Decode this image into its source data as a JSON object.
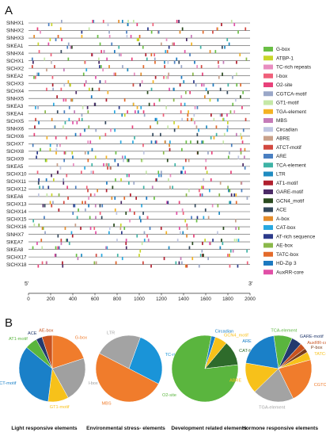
{
  "panel_a": {
    "letter": "A",
    "axis_start_label": "5'",
    "axis_end_label": "3'",
    "axis_ticks": [
      0,
      200,
      400,
      600,
      800,
      1000,
      1200,
      1400,
      1600,
      1800,
      2000
    ],
    "axis_range": [
      0,
      2000
    ],
    "genes": [
      "SlNHX1",
      "SlNHX2",
      "SlNHX3",
      "SlKEA1",
      "SlNHX4",
      "SlCHX1",
      "SlCHX2",
      "SlKEA2",
      "SlCHX3",
      "SlCHX4",
      "SlNHX5",
      "SlKEA3",
      "SlKEA4",
      "SlCHX5",
      "SlNHX6",
      "SlCHX6",
      "SlCHX7",
      "SlCHX8",
      "SlCHX9",
      "SlKEA5",
      "SlCHX10",
      "SlCHX11",
      "SlCHX12",
      "SlKEA6",
      "SlCHX13",
      "SlCHX14",
      "SlCHX15",
      "SlCHX16",
      "SlNHX7",
      "SlKEA7",
      "SlKEA8",
      "SlCHX17",
      "SlCHX18"
    ],
    "legend": [
      {
        "name": "G-box",
        "color": "#6abf45"
      },
      {
        "name": "ATBP-1",
        "color": "#c8d62b"
      },
      {
        "name": "TC-rich repeats",
        "color": "#e88dc0"
      },
      {
        "name": "I-box",
        "color": "#f0607a"
      },
      {
        "name": "O2-site",
        "color": "#e8417a"
      },
      {
        "name": "CGTCA-motif",
        "color": "#9aa7c8"
      },
      {
        "name": "GT1-motif",
        "color": "#c5e8a6"
      },
      {
        "name": "TGA-element",
        "color": "#f4b223"
      },
      {
        "name": "MBS",
        "color": "#c57bb8"
      },
      {
        "name": "Circadian",
        "color": "#bfc6e2"
      },
      {
        "name": "ABRE",
        "color": "#c9a08a"
      },
      {
        "name": "ATCT-motif",
        "color": "#d2483f"
      },
      {
        "name": "ARE",
        "color": "#4a7fc1"
      },
      {
        "name": "TCA-element",
        "color": "#3eb3a5"
      },
      {
        "name": "LTR",
        "color": "#1f8bc1"
      },
      {
        "name": "AT1-motif",
        "color": "#b01f2e"
      },
      {
        "name": "GARE-motif",
        "color": "#4b2a66"
      },
      {
        "name": "GCN4_motif",
        "color": "#2a4a1f"
      },
      {
        "name": "ACE",
        "color": "#34495e"
      },
      {
        "name": "A-box",
        "color": "#e38c2c"
      },
      {
        "name": "CAT-box",
        "color": "#29a8e0"
      },
      {
        "name": "AT-rich sequence",
        "color": "#2c3a8a"
      },
      {
        "name": "AE-box",
        "color": "#8ab84a"
      },
      {
        "name": "TATC-box",
        "color": "#e36a2a"
      },
      {
        "name": "HD-Zip 3",
        "color": "#1c79c0"
      },
      {
        "name": "AuxRR-core",
        "color": "#e04fa6"
      }
    ]
  },
  "panel_b": {
    "letter": "B",
    "pies": [
      {
        "title": "Light responsive elements",
        "slices": [
          {
            "label": "G-box",
            "value": 20,
            "color": "#f07c2c"
          },
          {
            "label": "l-box",
            "value": 22,
            "color": "#a0a0a0"
          },
          {
            "label": "GT1-motif",
            "value": 10,
            "color": "#f7c11a"
          },
          {
            "label": "ATCT-motif",
            "value": 34,
            "color": "#1a80c8"
          },
          {
            "label": "AT1-motif",
            "value": 6,
            "color": "#5ab53e"
          },
          {
            "label": "ACE",
            "value": 3,
            "color": "#233a6e"
          },
          {
            "label": "AE-box",
            "value": 5,
            "color": "#c9531f"
          }
        ]
      },
      {
        "title": "Environmental stress- elements",
        "slices": [
          {
            "label": "TC-rich repeats",
            "value": 27,
            "color": "#1a94d8"
          },
          {
            "label": "MBS",
            "value": 50,
            "color": "#f07c2c"
          },
          {
            "label": "LTR",
            "value": 23,
            "color": "#a3a3a3"
          }
        ]
      },
      {
        "title": "Development related elements",
        "slices": [
          {
            "label": "CAT-box",
            "value": 12,
            "color": "#2e6b2b"
          },
          {
            "label": "O2-site",
            "value": 80,
            "color": "#5ab53e"
          },
          {
            "label": "Circadian",
            "value": 2,
            "color": "#1a80c8"
          },
          {
            "label": "GCN4_motif",
            "value": 6,
            "color": "#f7c11a"
          }
        ]
      },
      {
        "title": "Hormone responsive elements",
        "slices": [
          {
            "label": "TATC-box",
            "value": 4,
            "color": "#f7c11a"
          },
          {
            "label": "CGTCA-motif",
            "value": 22,
            "color": "#f07c2c"
          },
          {
            "label": "TGA-element",
            "value": 20,
            "color": "#a3a3a3"
          },
          {
            "label": "ABRE",
            "value": 15,
            "color": "#f7c11a"
          },
          {
            "label": "ARE",
            "value": 20,
            "color": "#1a80c8"
          },
          {
            "label": "TCA-element",
            "value": 9,
            "color": "#5ab53e"
          },
          {
            "label": "GARE-motif",
            "value": 5,
            "color": "#233a6e"
          },
          {
            "label": "AuxRR-core",
            "value": 3,
            "color": "#c9531f"
          },
          {
            "label": "P-box",
            "value": 2,
            "color": "#7a3d1a"
          }
        ]
      }
    ]
  }
}
